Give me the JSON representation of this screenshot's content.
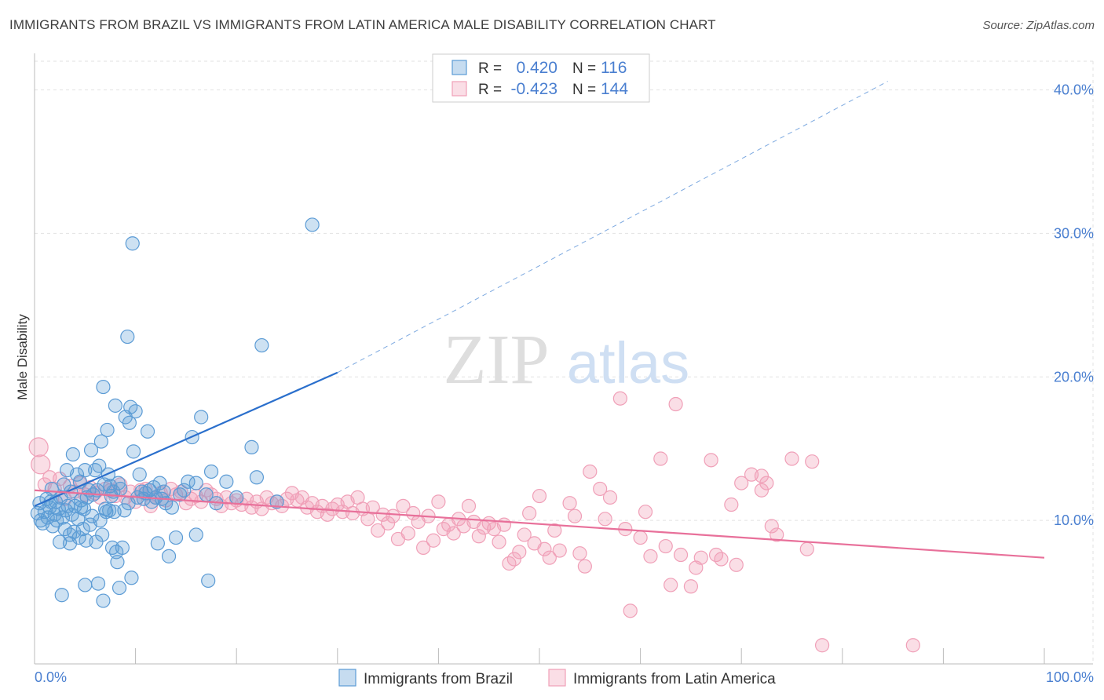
{
  "title": "IMMIGRANTS FROM BRAZIL VS IMMIGRANTS FROM LATIN AMERICA MALE DISABILITY CORRELATION CHART",
  "source": "Source: ZipAtlas.com",
  "watermark": {
    "zip": "ZIP",
    "atlas": "atlas"
  },
  "colors": {
    "blue": "#5b9bd5",
    "blue_line": "#2a6fcc",
    "pink": "#f0a0b8",
    "pink_line": "#e8709a",
    "axis_text": "#4a7fd0"
  },
  "chart_data": {
    "type": "scatter",
    "xlabel": "",
    "ylabel": "Male Disability",
    "xlim": [
      0,
      100
    ],
    "ylim": [
      0,
      42
    ],
    "x_tick_labels": {
      "left": "0.0%",
      "right": "100.0%"
    },
    "y_ticks": [
      {
        "value": 10,
        "label": "10.0%"
      },
      {
        "value": 20,
        "label": "20.0%"
      },
      {
        "value": 30,
        "label": "30.0%"
      },
      {
        "value": 40,
        "label": "40.0%"
      }
    ],
    "legend_position": "top-center",
    "stats": [
      {
        "series": "Immigrants from Brazil",
        "r_label": "R =",
        "r": "0.420",
        "n_label": "N =",
        "n": "116"
      },
      {
        "series": "Immigrants from Latin America",
        "r_label": "R =",
        "r": "-0.423",
        "n_label": "N =",
        "n": "144"
      }
    ],
    "series": [
      {
        "name": "Immigrants from Brazil",
        "color": "#5b9bd5",
        "trend": {
          "x1": 0,
          "y1": 11.0,
          "x2": 30,
          "y2": 20.3,
          "dash_to_x": 84.5,
          "dash_to_y": 40.6
        },
        "points": [
          [
            0.3,
            10.5
          ],
          [
            0.5,
            11.2
          ],
          [
            0.6,
            10.0
          ],
          [
            0.8,
            9.8
          ],
          [
            1.0,
            10.6
          ],
          [
            1.2,
            11.5
          ],
          [
            1.3,
            10.2
          ],
          [
            1.5,
            10.9
          ],
          [
            1.7,
            12.2
          ],
          [
            1.8,
            9.6
          ],
          [
            2.0,
            10.4
          ],
          [
            2.1,
            11.3
          ],
          [
            2.2,
            10.0
          ],
          [
            2.4,
            10.8
          ],
          [
            2.5,
            8.5
          ],
          [
            2.6,
            11.6
          ],
          [
            2.8,
            10.2
          ],
          [
            3.0,
            9.4
          ],
          [
            3.1,
            10.7
          ],
          [
            3.2,
            13.5
          ],
          [
            3.3,
            11.0
          ],
          [
            3.5,
            9.0
          ],
          [
            3.6,
            12.0
          ],
          [
            3.7,
            10.4
          ],
          [
            3.8,
            14.6
          ],
          [
            3.9,
            9.2
          ],
          [
            4.0,
            11.0
          ],
          [
            4.2,
            13.2
          ],
          [
            4.3,
            10.1
          ],
          [
            4.4,
            8.8
          ],
          [
            4.5,
            12.7
          ],
          [
            4.6,
            11.4
          ],
          [
            4.8,
            9.4
          ],
          [
            4.9,
            10.8
          ],
          [
            5.0,
            13.5
          ],
          [
            5.1,
            8.6
          ],
          [
            5.2,
            11.6
          ],
          [
            5.4,
            12.1
          ],
          [
            5.5,
            9.7
          ],
          [
            5.6,
            14.9
          ],
          [
            5.7,
            10.3
          ],
          [
            5.8,
            11.8
          ],
          [
            6.0,
            13.5
          ],
          [
            6.1,
            8.5
          ],
          [
            6.2,
            12.1
          ],
          [
            6.3,
            5.6
          ],
          [
            6.4,
            13.8
          ],
          [
            6.5,
            10.0
          ],
          [
            6.6,
            15.5
          ],
          [
            6.7,
            9.0
          ],
          [
            6.8,
            19.3
          ],
          [
            6.9,
            12.5
          ],
          [
            7.0,
            10.8
          ],
          [
            7.1,
            10.6
          ],
          [
            7.2,
            16.3
          ],
          [
            7.3,
            13.2
          ],
          [
            7.4,
            10.7
          ],
          [
            7.5,
            12.4
          ],
          [
            7.6,
            11.7
          ],
          [
            7.7,
            8.1
          ],
          [
            7.8,
            12.0
          ],
          [
            7.9,
            10.6
          ],
          [
            8.0,
            18.0
          ],
          [
            8.1,
            7.8
          ],
          [
            8.2,
            7.1
          ],
          [
            8.3,
            12.6
          ],
          [
            8.4,
            5.3
          ],
          [
            8.5,
            12.2
          ],
          [
            8.7,
            8.1
          ],
          [
            8.9,
            10.7
          ],
          [
            9.0,
            17.2
          ],
          [
            9.2,
            22.8
          ],
          [
            9.3,
            11.2
          ],
          [
            9.4,
            16.8
          ],
          [
            9.5,
            17.9
          ],
          [
            9.6,
            6.0
          ],
          [
            9.7,
            29.3
          ],
          [
            9.8,
            14.8
          ],
          [
            10.0,
            17.6
          ],
          [
            10.2,
            11.6
          ],
          [
            10.4,
            13.2
          ],
          [
            10.6,
            12.0
          ],
          [
            10.8,
            11.5
          ],
          [
            11.0,
            11.9
          ],
          [
            11.2,
            16.2
          ],
          [
            11.4,
            12.1
          ],
          [
            11.6,
            11.3
          ],
          [
            11.8,
            12.3
          ],
          [
            12.0,
            11.6
          ],
          [
            12.2,
            8.4
          ],
          [
            12.4,
            12.6
          ],
          [
            12.6,
            11.5
          ],
          [
            12.8,
            12.0
          ],
          [
            13.0,
            11.2
          ],
          [
            13.3,
            7.5
          ],
          [
            13.6,
            10.9
          ],
          [
            14.0,
            8.8
          ],
          [
            14.4,
            11.8
          ],
          [
            14.8,
            12.1
          ],
          [
            15.2,
            12.7
          ],
          [
            15.6,
            15.8
          ],
          [
            16.0,
            9.0
          ],
          [
            16.5,
            17.2
          ],
          [
            17.0,
            11.8
          ],
          [
            17.5,
            13.4
          ],
          [
            16.0,
            12.6
          ],
          [
            18.0,
            11.2
          ],
          [
            20.0,
            11.6
          ],
          [
            24.0,
            11.3
          ],
          [
            27.5,
            30.6
          ],
          [
            21.5,
            15.1
          ],
          [
            19.0,
            12.7
          ],
          [
            22.0,
            13.0
          ],
          [
            17.2,
            5.8
          ],
          [
            5.0,
            5.5
          ],
          [
            4.6,
            10.9
          ],
          [
            3.5,
            8.4
          ],
          [
            2.9,
            12.5
          ],
          [
            1.6,
            11.3
          ],
          [
            22.5,
            22.2
          ],
          [
            2.7,
            4.8
          ],
          [
            6.8,
            4.4
          ]
        ]
      },
      {
        "name": "Immigrants from Latin America",
        "color": "#f0a0b8",
        "trend": {
          "x1": 0,
          "y1": 12.1,
          "x2": 100,
          "y2": 7.4
        },
        "points": [
          [
            0.4,
            15.1
          ],
          [
            0.6,
            13.9
          ],
          [
            1.0,
            12.5
          ],
          [
            1.5,
            13.0
          ],
          [
            2.0,
            12.2
          ],
          [
            2.5,
            12.9
          ],
          [
            3.0,
            11.5
          ],
          [
            3.5,
            12.4
          ],
          [
            4.0,
            12.0
          ],
          [
            4.5,
            12.6
          ],
          [
            5.0,
            11.8
          ],
          [
            5.5,
            12.3
          ],
          [
            6.0,
            11.9
          ],
          [
            6.5,
            11.6
          ],
          [
            7.0,
            12.2
          ],
          [
            7.5,
            12.1
          ],
          [
            8.0,
            11.7
          ],
          [
            8.5,
            12.5
          ],
          [
            9.0,
            11.6
          ],
          [
            9.5,
            12.0
          ],
          [
            10.0,
            11.3
          ],
          [
            10.5,
            12.1
          ],
          [
            11.0,
            12.2
          ],
          [
            11.5,
            11.0
          ],
          [
            12.0,
            11.6
          ],
          [
            12.5,
            11.9
          ],
          [
            13.0,
            11.4
          ],
          [
            13.5,
            12.2
          ],
          [
            14.0,
            11.8
          ],
          [
            14.5,
            12.0
          ],
          [
            15.0,
            11.2
          ],
          [
            15.5,
            11.5
          ],
          [
            16.0,
            11.7
          ],
          [
            16.5,
            11.3
          ],
          [
            17.0,
            12.1
          ],
          [
            17.5,
            11.8
          ],
          [
            18.0,
            11.5
          ],
          [
            18.5,
            11.0
          ],
          [
            19.0,
            11.6
          ],
          [
            19.5,
            11.2
          ],
          [
            20.0,
            11.4
          ],
          [
            20.5,
            11.1
          ],
          [
            21.0,
            11.5
          ],
          [
            21.5,
            10.9
          ],
          [
            22.0,
            11.3
          ],
          [
            22.5,
            10.8
          ],
          [
            23.0,
            11.6
          ],
          [
            23.5,
            11.2
          ],
          [
            24.0,
            11.3
          ],
          [
            24.5,
            11.0
          ],
          [
            25.0,
            11.5
          ],
          [
            25.5,
            11.9
          ],
          [
            26.0,
            11.4
          ],
          [
            26.5,
            11.6
          ],
          [
            27.0,
            10.9
          ],
          [
            27.5,
            11.2
          ],
          [
            28.0,
            10.6
          ],
          [
            28.5,
            11.0
          ],
          [
            29.0,
            10.4
          ],
          [
            29.5,
            10.8
          ],
          [
            30.0,
            11.1
          ],
          [
            30.5,
            10.6
          ],
          [
            31.0,
            11.3
          ],
          [
            31.5,
            10.5
          ],
          [
            32.0,
            11.6
          ],
          [
            32.5,
            10.8
          ],
          [
            33.0,
            10.1
          ],
          [
            33.5,
            10.9
          ],
          [
            34.0,
            9.3
          ],
          [
            34.5,
            10.4
          ],
          [
            35.0,
            9.8
          ],
          [
            35.5,
            10.3
          ],
          [
            36.0,
            8.7
          ],
          [
            36.5,
            11.0
          ],
          [
            37.0,
            9.1
          ],
          [
            37.5,
            10.5
          ],
          [
            38.0,
            9.9
          ],
          [
            38.5,
            8.1
          ],
          [
            39.0,
            10.3
          ],
          [
            39.5,
            8.6
          ],
          [
            40.0,
            11.3
          ],
          [
            40.5,
            9.4
          ],
          [
            41.0,
            9.7
          ],
          [
            41.5,
            9.1
          ],
          [
            42.0,
            10.1
          ],
          [
            42.5,
            9.6
          ],
          [
            43.0,
            11.0
          ],
          [
            43.5,
            9.9
          ],
          [
            44.0,
            8.9
          ],
          [
            44.5,
            9.5
          ],
          [
            45.0,
            9.8
          ],
          [
            45.5,
            9.4
          ],
          [
            46.0,
            8.5
          ],
          [
            46.5,
            9.7
          ],
          [
            47.0,
            7.0
          ],
          [
            47.5,
            7.3
          ],
          [
            48.0,
            7.8
          ],
          [
            48.5,
            9.0
          ],
          [
            49.0,
            10.5
          ],
          [
            49.5,
            8.4
          ],
          [
            50.0,
            11.7
          ],
          [
            50.5,
            8.0
          ],
          [
            51.0,
            7.4
          ],
          [
            51.5,
            9.3
          ],
          [
            52.0,
            7.9
          ],
          [
            53.0,
            11.2
          ],
          [
            53.5,
            10.3
          ],
          [
            54.0,
            7.7
          ],
          [
            54.5,
            6.8
          ],
          [
            55.0,
            13.4
          ],
          [
            56.0,
            12.2
          ],
          [
            56.5,
            10.1
          ],
          [
            57.0,
            11.6
          ],
          [
            58.0,
            18.5
          ],
          [
            58.5,
            9.4
          ],
          [
            59.0,
            3.7
          ],
          [
            60.0,
            8.8
          ],
          [
            61.0,
            7.5
          ],
          [
            62.0,
            14.3
          ],
          [
            62.5,
            8.2
          ],
          [
            63.0,
            5.5
          ],
          [
            63.5,
            18.1
          ],
          [
            64.0,
            7.6
          ],
          [
            65.0,
            5.4
          ],
          [
            65.5,
            6.7
          ],
          [
            66.0,
            7.4
          ],
          [
            67.0,
            14.2
          ],
          [
            67.5,
            7.6
          ],
          [
            68.0,
            7.3
          ],
          [
            69.0,
            11.1
          ],
          [
            69.5,
            6.9
          ],
          [
            70.0,
            12.6
          ],
          [
            71.0,
            13.2
          ],
          [
            72.0,
            12.1
          ],
          [
            72.5,
            12.6
          ],
          [
            73.0,
            9.6
          ],
          [
            75.0,
            14.3
          ],
          [
            77.0,
            14.1
          ],
          [
            78.0,
            1.3
          ],
          [
            87.0,
            1.3
          ],
          [
            72.0,
            13.1
          ],
          [
            76.5,
            8.0
          ],
          [
            73.5,
            9.0
          ],
          [
            60.5,
            10.6
          ]
        ]
      }
    ]
  },
  "legend": {
    "items": [
      {
        "label": "Immigrants from Brazil",
        "color": "#5b9bd5"
      },
      {
        "label": "Immigrants from Latin America",
        "color": "#f0a0b8"
      }
    ]
  }
}
